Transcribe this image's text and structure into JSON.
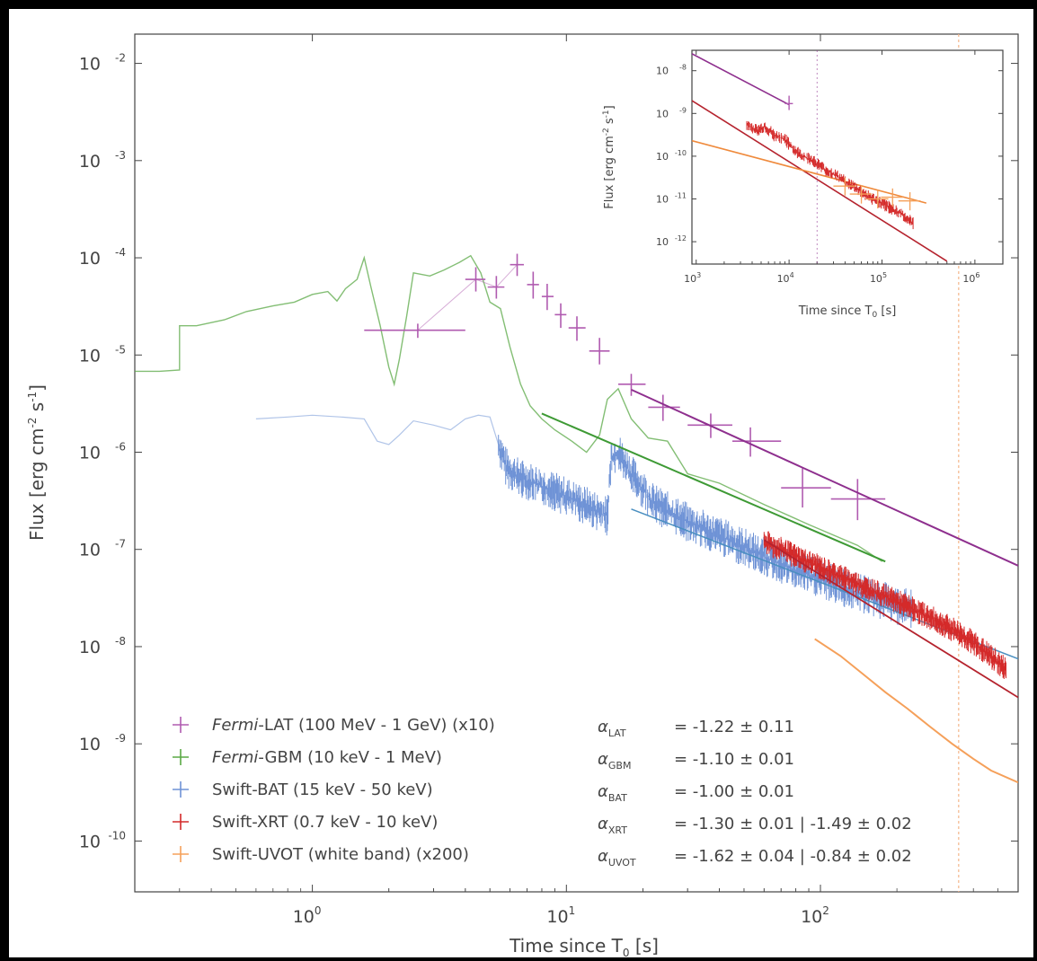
{
  "colors": {
    "lat": "#b05bb0",
    "gbm": "#5aa845",
    "bat": "#6f93d6",
    "xrt": "#d42a2a",
    "uvot": "#f5a05a",
    "fit_lat": "#8e2f8e",
    "fit_gbm": "#3e9a35",
    "fit_xrt": "#b5232e",
    "fit_uvot": "#ef8a3c",
    "axis": "#444444",
    "vline": "#f5b58a"
  },
  "chart_data": [
    {
      "type": "scatter",
      "xscale": "log",
      "yscale": "log",
      "xlabel": "Time since T",
      "xlabel_sub": "0",
      "xlabel_unit": "[s]",
      "ylabel": "Flux [erg cm",
      "ylabel_sup1": "-2",
      "ylabel_mid": " s",
      "ylabel_sup2": "-1",
      "ylabel_end": "]",
      "xlim": [
        0.2,
        600
      ],
      "ylim": [
        3e-11,
        0.02
      ],
      "xticks": [
        1,
        10,
        100
      ],
      "xtick_labels": [
        "10",
        "10",
        "10"
      ],
      "xtick_exps": [
        "0",
        "1",
        "2"
      ],
      "yticks": [
        0.01,
        0.001,
        0.0001,
        1e-05,
        1e-06,
        1e-07,
        1e-08,
        1e-09,
        1e-10
      ],
      "ytick_labels": [
        "10",
        "10",
        "10",
        "10",
        "10",
        "10",
        "10",
        "10",
        "10"
      ],
      "ytick_exps": [
        "-2",
        "-3",
        "-4",
        "-5",
        "-6",
        "-7",
        "-8",
        "-9",
        "-10"
      ],
      "vline_x": 350,
      "legend_position": "bottom-left",
      "series": [
        {
          "key": "lat",
          "name": "Fermi-LAT (100 MeV - 1 GeV) (x10)",
          "name_italic": "Fermi",
          "name_rest": "-LAT (100 MeV - 1 GeV) (x10)",
          "alpha_label": "α",
          "alpha_sub": "LAT",
          "alpha_text": "= -1.22 ± 0.11",
          "style": "errorbar",
          "points": [
            {
              "x": 2.6,
              "y": 1.8e-05,
              "xerr": [
                1.6,
                4.0
              ],
              "yerr": [
                1.5e-05,
                2.1e-05
              ]
            },
            {
              "x": 4.4,
              "y": 6e-05,
              "xerr": [
                4.0,
                4.8
              ],
              "yerr": [
                4.5e-05,
                8e-05
              ]
            },
            {
              "x": 5.3,
              "y": 5e-05,
              "xerr": [
                4.9,
                5.7
              ],
              "yerr": [
                3.8e-05,
                6.5e-05
              ]
            },
            {
              "x": 6.4,
              "y": 8.5e-05,
              "xerr": [
                6.0,
                6.8
              ],
              "yerr": [
                6.5e-05,
                0.00011
              ]
            },
            {
              "x": 7.4,
              "y": 5.3e-05,
              "xerr": [
                7.0,
                7.8
              ],
              "yerr": [
                3.8e-05,
                7.2e-05
              ]
            },
            {
              "x": 8.4,
              "y": 4e-05,
              "xerr": [
                8.0,
                8.9
              ],
              "yerr": [
                2.9e-05,
                5.4e-05
              ]
            },
            {
              "x": 9.5,
              "y": 2.6e-05,
              "xerr": [
                9.0,
                10.0
              ],
              "yerr": [
                1.9e-05,
                3.4e-05
              ]
            },
            {
              "x": 11.0,
              "y": 1.9e-05,
              "xerr": [
                10.2,
                11.9
              ],
              "yerr": [
                1.4e-05,
                2.5e-05
              ]
            },
            {
              "x": 13.5,
              "y": 1.1e-05,
              "xerr": [
                12.3,
                14.8
              ],
              "yerr": [
                8e-06,
                1.5e-05
              ]
            },
            {
              "x": 18.0,
              "y": 5e-06,
              "xerr": [
                16.0,
                20.5
              ],
              "yerr": [
                3.8e-06,
                6.4e-06
              ]
            },
            {
              "x": 24.0,
              "y": 2.9e-06,
              "xerr": [
                21.0,
                28.0
              ],
              "yerr": [
                2.1e-06,
                3.9e-06
              ]
            },
            {
              "x": 37.0,
              "y": 1.9e-06,
              "xerr": [
                30.0,
                45.0
              ],
              "yerr": [
                1.4e-06,
                2.5e-06
              ]
            },
            {
              "x": 53.0,
              "y": 1.3e-06,
              "xerr": [
                45.0,
                70.0
              ],
              "yerr": [
                9e-07,
                1.8e-06
              ]
            },
            {
              "x": 85.0,
              "y": 4.3e-07,
              "xerr": [
                70.0,
                110.0
              ],
              "yerr": [
                2.7e-07,
                6.8e-07
              ]
            },
            {
              "x": 140.0,
              "y": 3.3e-07,
              "xerr": [
                110.0,
                180.0
              ],
              "yerr": [
                2e-07,
                5.3e-07
              ]
            }
          ],
          "fit": {
            "x": [
              18,
              600
            ],
            "y": [
              4.4e-06,
              6.8e-08
            ]
          }
        },
        {
          "key": "gbm",
          "name": "Fermi-GBM (10 keV - 1 MeV)",
          "name_italic": "Fermi",
          "name_rest": "-GBM (10 keV - 1 MeV)",
          "alpha_label": "α",
          "alpha_sub": "GBM",
          "alpha_text": "= -1.10 ± 0.01",
          "style": "step",
          "points": [
            {
              "x": 0.2,
              "y": 6.8e-06
            },
            {
              "x": 0.25,
              "y": 6.8e-06
            },
            {
              "x": 0.3,
              "y": 7e-06
            },
            {
              "x": 0.3,
              "y": 2e-05
            },
            {
              "x": 0.35,
              "y": 2e-05
            },
            {
              "x": 0.45,
              "y": 2.3e-05
            },
            {
              "x": 0.55,
              "y": 2.8e-05
            },
            {
              "x": 0.7,
              "y": 3.2e-05
            },
            {
              "x": 0.85,
              "y": 3.5e-05
            },
            {
              "x": 1.0,
              "y": 4.2e-05
            },
            {
              "x": 1.15,
              "y": 4.5e-05
            },
            {
              "x": 1.25,
              "y": 3.6e-05
            },
            {
              "x": 1.35,
              "y": 4.8e-05
            },
            {
              "x": 1.5,
              "y": 6e-05
            },
            {
              "x": 1.6,
              "y": 0.0001
            },
            {
              "x": 1.7,
              "y": 5e-05
            },
            {
              "x": 1.85,
              "y": 2e-05
            },
            {
              "x": 2.0,
              "y": 7.5e-06
            },
            {
              "x": 2.1,
              "y": 5e-06
            },
            {
              "x": 2.2,
              "y": 9e-06
            },
            {
              "x": 2.35,
              "y": 2.5e-05
            },
            {
              "x": 2.5,
              "y": 7e-05
            },
            {
              "x": 2.9,
              "y": 6.5e-05
            },
            {
              "x": 3.3,
              "y": 7.5e-05
            },
            {
              "x": 3.8,
              "y": 9e-05
            },
            {
              "x": 4.2,
              "y": 0.000105
            },
            {
              "x": 4.6,
              "y": 7e-05
            },
            {
              "x": 5.0,
              "y": 3.5e-05
            },
            {
              "x": 5.5,
              "y": 3e-05
            },
            {
              "x": 6.0,
              "y": 1.2e-05
            },
            {
              "x": 6.6,
              "y": 5e-06
            },
            {
              "x": 7.2,
              "y": 3e-06
            },
            {
              "x": 8.0,
              "y": 2.2e-06
            },
            {
              "x": 9.0,
              "y": 1.7e-06
            },
            {
              "x": 10.5,
              "y": 1.3e-06
            },
            {
              "x": 12.0,
              "y": 1e-06
            },
            {
              "x": 13.5,
              "y": 1.5e-06
            },
            {
              "x": 14.5,
              "y": 3.5e-06
            },
            {
              "x": 16.0,
              "y": 4.5e-06
            },
            {
              "x": 18.0,
              "y": 2.2e-06
            },
            {
              "x": 21.0,
              "y": 1.4e-06
            },
            {
              "x": 25.0,
              "y": 1.3e-06
            },
            {
              "x": 30.0,
              "y": 6e-07
            },
            {
              "x": 40.0,
              "y": 4.8e-07
            },
            {
              "x": 60.0,
              "y": 2.9e-07
            },
            {
              "x": 90.0,
              "y": 1.8e-07
            },
            {
              "x": 140.0,
              "y": 1.1e-07
            },
            {
              "x": 175.0,
              "y": 7.5e-08
            }
          ],
          "fit": {
            "x": [
              8,
              180
            ],
            "y": [
              2.5e-06,
              7.5e-08
            ]
          }
        },
        {
          "key": "bat",
          "name": "Swift-BAT (15 keV - 50 keV)",
          "name_italic": "",
          "name_rest": "Swift-BAT (15 keV - 50 keV)",
          "alpha_label": "α",
          "alpha_sub": "BAT",
          "alpha_text": "= -1.00 ± 0.01",
          "style": "noisy",
          "points": [
            {
              "x": 0.6,
              "y": 2.2e-06
            },
            {
              "x": 0.8,
              "y": 2.3e-06
            },
            {
              "x": 1.0,
              "y": 2.4e-06
            },
            {
              "x": 1.3,
              "y": 2.3e-06
            },
            {
              "x": 1.6,
              "y": 2.2e-06
            },
            {
              "x": 1.8,
              "y": 1.3e-06
            },
            {
              "x": 2.0,
              "y": 1.2e-06
            },
            {
              "x": 2.2,
              "y": 1.5e-06
            },
            {
              "x": 2.5,
              "y": 2.1e-06
            },
            {
              "x": 3.0,
              "y": 1.9e-06
            },
            {
              "x": 3.5,
              "y": 1.7e-06
            },
            {
              "x": 4.0,
              "y": 2.2e-06
            },
            {
              "x": 4.5,
              "y": 2.4e-06
            },
            {
              "x": 5.0,
              "y": 2.3e-06
            },
            {
              "x": 5.4,
              "y": 1.2e-06
            },
            {
              "x": 5.8,
              "y": 7e-07
            },
            {
              "x": 6.5,
              "y": 5.5e-07
            },
            {
              "x": 8.0,
              "y": 4.5e-07
            },
            {
              "x": 10.0,
              "y": 3.5e-07
            },
            {
              "x": 12.0,
              "y": 2.8e-07
            },
            {
              "x": 14.5,
              "y": 2.2e-07
            },
            {
              "x": 15.0,
              "y": 9e-07
            },
            {
              "x": 16.0,
              "y": 1e-06
            },
            {
              "x": 18.0,
              "y": 6e-07
            },
            {
              "x": 22.0,
              "y": 3e-07
            },
            {
              "x": 30.0,
              "y": 1.9e-07
            },
            {
              "x": 45.0,
              "y": 1.2e-07
            },
            {
              "x": 70.0,
              "y": 7e-08
            },
            {
              "x": 110.0,
              "y": 4.5e-08
            },
            {
              "x": 160.0,
              "y": 3.2e-08
            },
            {
              "x": 230.0,
              "y": 2.4e-08
            }
          ],
          "fit": {
            "x": [
              18,
              600
            ],
            "y": [
              2.6e-07,
              7.5e-09
            ]
          }
        },
        {
          "key": "xrt",
          "name": "Swift-XRT (0.7 keV - 10 keV)",
          "name_italic": "",
          "name_rest": "Swift-XRT (0.7 keV - 10 keV)",
          "alpha_label": "α",
          "alpha_sub": "XRT",
          "alpha_text": "= -1.30 ± 0.01 | -1.49 ± 0.02",
          "style": "noisy",
          "points": [
            {
              "x": 60,
              "y": 1.2e-07
            },
            {
              "x": 80,
              "y": 8.5e-08
            },
            {
              "x": 100,
              "y": 6.5e-08
            },
            {
              "x": 130,
              "y": 4.8e-08
            },
            {
              "x": 170,
              "y": 3.5e-08
            },
            {
              "x": 220,
              "y": 2.6e-08
            },
            {
              "x": 280,
              "y": 1.9e-08
            },
            {
              "x": 350,
              "y": 1.4e-08
            },
            {
              "x": 420,
              "y": 1e-08
            },
            {
              "x": 480,
              "y": 7.5e-09
            },
            {
              "x": 540,
              "y": 5.8e-09
            }
          ],
          "fit": {
            "x": [
              60,
              600
            ],
            "y": [
              1.25e-07,
              3e-09
            ]
          }
        },
        {
          "key": "uvot",
          "name": "Swift-UVOT (white band) (x200)",
          "name_italic": "",
          "name_rest": "Swift-UVOT (white band) (x200)",
          "alpha_label": "α",
          "alpha_sub": "UVOT",
          "alpha_text": "= -1.62 ± 0.04 | -0.84 ± 0.02",
          "style": "line",
          "points": [
            {
              "x": 95,
              "y": 1.2e-08
            },
            {
              "x": 120,
              "y": 8e-09
            },
            {
              "x": 150,
              "y": 5e-09
            },
            {
              "x": 180,
              "y": 3.4e-09
            },
            {
              "x": 220,
              "y": 2.3e-09
            },
            {
              "x": 270,
              "y": 1.5e-09
            },
            {
              "x": 330,
              "y": 1e-09
            },
            {
              "x": 400,
              "y": 7e-10
            },
            {
              "x": 470,
              "y": 5.3e-10
            },
            {
              "x": 600,
              "y": 4e-10
            }
          ],
          "fit": {
            "x": [
              95,
              600
            ],
            "y": [
              1.2e-08,
              4e-10
            ]
          }
        }
      ]
    },
    {
      "type": "scatter",
      "xscale": "log",
      "yscale": "log",
      "xlabel": "Time since T",
      "xlabel_sub": "0",
      "xlabel_unit": "[s]",
      "ylabel": "Flux [erg cm",
      "ylabel_sup1": "-2",
      "ylabel_mid": " s",
      "ylabel_sup2": "-1",
      "ylabel_end": "]",
      "xlim": [
        900,
        2000000.0
      ],
      "ylim": [
        3e-13,
        3e-08
      ],
      "xticks": [
        1000,
        10000,
        100000,
        1000000
      ],
      "xtick_labels": [
        "10",
        "10",
        "10",
        "10"
      ],
      "xtick_exps": [
        "3",
        "4",
        "5",
        "6"
      ],
      "yticks": [
        1e-08,
        1e-09,
        1e-10,
        1e-11,
        1e-12
      ],
      "ytick_labels": [
        "10",
        "10",
        "10",
        "10",
        "10"
      ],
      "ytick_exps": [
        "-8",
        "-9",
        "-10",
        "-11",
        "-12"
      ],
      "vline_x": 20000,
      "lines": [
        {
          "key": "lat",
          "x": [
            900,
            10000
          ],
          "y": [
            2.5e-08,
            1.6e-09
          ]
        },
        {
          "key": "xrt",
          "x": [
            900,
            500000
          ],
          "y": [
            2e-09,
            3.5e-13
          ]
        },
        {
          "key": "uvot",
          "x": [
            900,
            300000
          ],
          "y": [
            2.3e-10,
            8e-12
          ]
        }
      ],
      "lat_points": [
        {
          "x": 10000,
          "y": 1.7e-09,
          "xerr": [
            9000,
            11000
          ],
          "yerr": [
            1.2e-09,
            2.6e-09
          ]
        }
      ],
      "xrt_points": [
        {
          "x": 3500,
          "y": 5.5e-10
        },
        {
          "x": 4500,
          "y": 4e-10
        },
        {
          "x": 5500,
          "y": 5e-10
        },
        {
          "x": 7000,
          "y": 3e-10
        },
        {
          "x": 9000,
          "y": 2.5e-10
        },
        {
          "x": 11000,
          "y": 1.5e-10
        },
        {
          "x": 14000,
          "y": 1e-10
        },
        {
          "x": 18000,
          "y": 8e-11
        },
        {
          "x": 24000,
          "y": 5e-11
        },
        {
          "x": 32000,
          "y": 3.5e-11
        },
        {
          "x": 45000,
          "y": 2.2e-11
        },
        {
          "x": 60000,
          "y": 1.5e-11
        },
        {
          "x": 80000,
          "y": 1e-11
        },
        {
          "x": 110000,
          "y": 7e-12
        },
        {
          "x": 150000,
          "y": 5e-12
        },
        {
          "x": 220000,
          "y": 2.6e-12
        }
      ],
      "uvot_points": [
        {
          "x": 40000,
          "y": 2e-11
        },
        {
          "x": 60000,
          "y": 1.3e-11
        },
        {
          "x": 90000,
          "y": 1e-11
        },
        {
          "x": 130000,
          "y": 1.1e-11
        },
        {
          "x": 200000,
          "y": 9e-12
        }
      ]
    }
  ]
}
